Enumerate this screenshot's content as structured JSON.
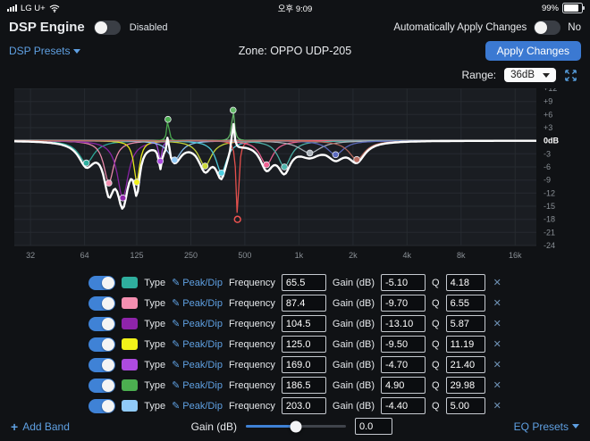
{
  "status_bar": {
    "carrier": "LG U+",
    "time": "오후 9:09",
    "battery": "99%"
  },
  "header": {
    "title": "DSP Engine",
    "disabled_toggle_label": "Disabled",
    "auto_apply_label": "Automatically Apply Changes",
    "auto_apply_state": "No"
  },
  "presets_row": {
    "dsp_presets_label": "DSP Presets",
    "zone_label": "Zone: OPPO UDP-205",
    "apply_button_label": "Apply Changes"
  },
  "range_row": {
    "label": "Range:",
    "selected_value": "36dB"
  },
  "chart_data": {
    "type": "line",
    "x_axis": "frequency_hz_log",
    "xlim_hz": [
      26,
      21000
    ],
    "ylim_db": [
      -24,
      12
    ],
    "grid": true,
    "composite_color": "#ffffff",
    "x_ticks": [
      {
        "label": "32",
        "hz": 32
      },
      {
        "label": "64",
        "hz": 64
      },
      {
        "label": "125",
        "hz": 125
      },
      {
        "label": "250",
        "hz": 250
      },
      {
        "label": "500",
        "hz": 500
      },
      {
        "label": "1k",
        "hz": 1000
      },
      {
        "label": "2k",
        "hz": 2000
      },
      {
        "label": "4k",
        "hz": 4000
      },
      {
        "label": "8k",
        "hz": 8000
      },
      {
        "label": "16k",
        "hz": 16000
      }
    ],
    "y_ticks": [
      {
        "label": "+12",
        "db": 12
      },
      {
        "label": "+9",
        "db": 9
      },
      {
        "label": "+6",
        "db": 6
      },
      {
        "label": "+3",
        "db": 3
      },
      {
        "label": "0dB",
        "db": 0
      },
      {
        "label": "-3",
        "db": -3
      },
      {
        "label": "-6",
        "db": -6
      },
      {
        "label": "-9",
        "db": -9
      },
      {
        "label": "-12",
        "db": -12
      },
      {
        "label": "-15",
        "db": -15
      },
      {
        "label": "-18",
        "db": -18
      },
      {
        "label": "-21",
        "db": -21
      },
      {
        "label": "-24",
        "db": -24
      }
    ],
    "bands": [
      {
        "freq": 65.5,
        "gain": -5.1,
        "q": 4.18,
        "color": "#2fae9e",
        "enabled": true
      },
      {
        "freq": 87.4,
        "gain": -9.7,
        "q": 6.55,
        "color": "#f48fb1",
        "enabled": true
      },
      {
        "freq": 104.5,
        "gain": -13.1,
        "q": 5.87,
        "color": "#8e24aa",
        "enabled": true
      },
      {
        "freq": 125.0,
        "gain": -9.5,
        "q": 11.19,
        "color": "#f2f21a",
        "enabled": true
      },
      {
        "freq": 169.0,
        "gain": -4.7,
        "q": 21.4,
        "color": "#ad4be0",
        "enabled": true
      },
      {
        "freq": 186.5,
        "gain": 4.9,
        "q": 29.98,
        "color": "#4caf50",
        "enabled": true
      },
      {
        "freq": 203.0,
        "gain": -4.4,
        "q": 5.0,
        "color": "#90caf9",
        "enabled": true
      },
      {
        "freq": 300,
        "gain": -5.8,
        "q": 5,
        "color": "#cddc39",
        "enabled": true,
        "estimated": true
      },
      {
        "freq": 370,
        "gain": -7.4,
        "q": 6,
        "color": "#4dd0e1",
        "enabled": true,
        "estimated": true
      },
      {
        "freq": 430,
        "gain": 7.0,
        "q": 25,
        "color": "#66bb6a",
        "enabled": true,
        "estimated": true
      },
      {
        "freq": 455,
        "gain": -18.0,
        "q": 25,
        "color": "#ef5350",
        "enabled": false,
        "estimated": true
      },
      {
        "freq": 660,
        "gain": -5.5,
        "q": 5,
        "color": "#f06292",
        "enabled": true,
        "estimated": true
      },
      {
        "freq": 830,
        "gain": -6.0,
        "q": 5,
        "color": "#4db6ac",
        "enabled": true,
        "estimated": true
      },
      {
        "freq": 1150,
        "gain": -2.8,
        "q": 3,
        "color": "#aeb6bd",
        "enabled": true,
        "estimated": true
      },
      {
        "freq": 1600,
        "gain": -3.2,
        "q": 4,
        "color": "#5c6bc0",
        "enabled": true,
        "estimated": true
      },
      {
        "freq": 2100,
        "gain": -4.3,
        "q": 4,
        "color": "#b96a5e",
        "enabled": true,
        "estimated": true
      }
    ]
  },
  "bands": {
    "labels": {
      "type": "Type",
      "edit": "Peak/Dip",
      "frequency": "Frequency",
      "gain": "Gain (dB)",
      "q": "Q"
    },
    "rows": [
      {
        "freq": "65.5",
        "gain": "-5.10",
        "q": "4.18",
        "color": "#2fae9e"
      },
      {
        "freq": "87.4",
        "gain": "-9.70",
        "q": "6.55",
        "color": "#f48fb1"
      },
      {
        "freq": "104.5",
        "gain": "-13.10",
        "q": "5.87",
        "color": "#8e24aa"
      },
      {
        "freq": "125.0",
        "gain": "-9.50",
        "q": "11.19",
        "color": "#f2f21a"
      },
      {
        "freq": "169.0",
        "gain": "-4.70",
        "q": "21.40",
        "color": "#ad4be0"
      },
      {
        "freq": "186.5",
        "gain": "4.90",
        "q": "29.98",
        "color": "#4caf50"
      },
      {
        "freq": "203.0",
        "gain": "-4.40",
        "q": "5.00",
        "color": "#90caf9"
      }
    ]
  },
  "footer": {
    "add_band_label": "Add Band",
    "gain_label": "Gain (dB)",
    "gain_value": "0.0",
    "eq_presets_label": "EQ Presets"
  },
  "icons": {
    "pencil": "✎",
    "close": "✕",
    "plus": "+"
  }
}
